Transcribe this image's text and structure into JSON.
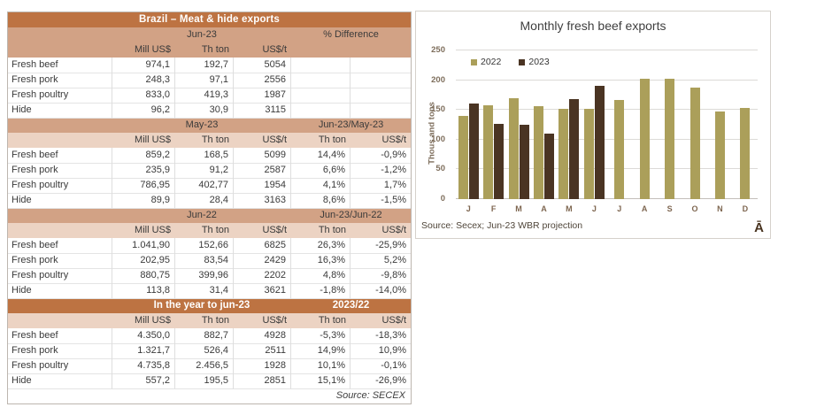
{
  "table": {
    "title": "Brazil – Meat & hide exports",
    "footer": "Source: SECEX",
    "sections": [
      {
        "period": "Jun-23",
        "diff": "% Difference",
        "header_style": "tan",
        "unit_style": "tan",
        "units": [
          "",
          "Mill US$",
          "Th ton",
          "US$/t",
          "",
          ""
        ],
        "rows": [
          [
            "Fresh beef",
            "974,1",
            "192,7",
            "5054",
            "",
            ""
          ],
          [
            "Fresh pork",
            "248,3",
            "97,1",
            "2556",
            "",
            ""
          ],
          [
            "Fresh poultry",
            "833,0",
            "419,3",
            "1987",
            "",
            ""
          ],
          [
            "Hide",
            "96,2",
            "30,9",
            "3115",
            "",
            ""
          ]
        ]
      },
      {
        "period": "May-23",
        "diff": "Jun-23/May-23",
        "header_style": "tan",
        "unit_style": "pink",
        "units": [
          "",
          "Mill US$",
          "Th ton",
          "US$/t",
          "Th ton",
          "US$/t"
        ],
        "rows": [
          [
            "Fresh beef",
            "859,2",
            "168,5",
            "5099",
            "14,4%",
            "-0,9%"
          ],
          [
            "Fresh pork",
            "235,9",
            "91,2",
            "2587",
            "6,6%",
            "-1,2%"
          ],
          [
            "Fresh poultry",
            "786,95",
            "402,77",
            "1954",
            "4,1%",
            "1,7%"
          ],
          [
            "Hide",
            "89,9",
            "28,4",
            "3163",
            "8,6%",
            "-1,5%"
          ]
        ]
      },
      {
        "period": "Jun-22",
        "diff": "Jun-23/Jun-22",
        "header_style": "tan",
        "unit_style": "pink",
        "units": [
          "",
          "Mill US$",
          "Th ton",
          "US$/t",
          "Th ton",
          "US$/t"
        ],
        "rows": [
          [
            "Fresh beef",
            "1.041,90",
            "152,66",
            "6825",
            "26,3%",
            "-25,9%"
          ],
          [
            "Fresh pork",
            "202,95",
            "83,54",
            "2429",
            "16,3%",
            "5,2%"
          ],
          [
            "Fresh poultry",
            "880,75",
            "399,96",
            "2202",
            "4,8%",
            "-9,8%"
          ],
          [
            "Hide",
            "113,8",
            "31,4",
            "3621",
            "-1,8%",
            "-14,0%"
          ]
        ]
      },
      {
        "period": "In the year to jun-23",
        "diff": "2023/22",
        "header_style": "copper",
        "unit_style": "pink",
        "units": [
          "",
          "Mill US$",
          "Th ton",
          "US$/t",
          "Th ton",
          "US$/t"
        ],
        "rows": [
          [
            "Fresh beef",
            "4.350,0",
            "882,7",
            "4928",
            "-5,3%",
            "-18,3%"
          ],
          [
            "Fresh pork",
            "1.321,7",
            "526,4",
            "2511",
            "14,9%",
            "10,9%"
          ],
          [
            "Fresh poultry",
            "4.735,8",
            "2.456,5",
            "1928",
            "10,1%",
            "-0,1%"
          ],
          [
            "Hide",
            "557,2",
            "195,5",
            "2851",
            "15,1%",
            "-26,9%"
          ]
        ]
      }
    ]
  },
  "chart": {
    "title": "Monthly fresh beef exports",
    "ylabel": "Thous and tons",
    "source": "Source: Secex; Jun-23 WBR projection",
    "corner_mark": "Ā"
  },
  "chart_data": {
    "type": "bar",
    "title": "Monthly fresh beef exports",
    "categories": [
      "J",
      "F",
      "M",
      "A",
      "M",
      "J",
      "J",
      "A",
      "S",
      "O",
      "N",
      "D"
    ],
    "series": [
      {
        "name": "2022",
        "color": "#ab9f5a",
        "values": [
          140,
          158,
          170,
          157,
          152,
          152,
          167,
          202,
          202,
          188,
          147,
          153
        ]
      },
      {
        "name": "2023",
        "color": "#4a3423",
        "values": [
          160,
          126,
          125,
          110,
          168,
          191,
          null,
          null,
          null,
          null,
          null,
          null
        ]
      }
    ],
    "xlabel": "",
    "ylabel": "Thous and tons",
    "ylim": [
      0,
      250
    ],
    "ytick_step": 50,
    "grid": true,
    "legend_position": "top-left-inside"
  },
  "colors": {
    "copper_band": "#bd7342",
    "tan_band": "#d2a285",
    "pink_band": "#ecd3c3",
    "series_2022": "#ab9f5a",
    "series_2023": "#4a3423"
  }
}
